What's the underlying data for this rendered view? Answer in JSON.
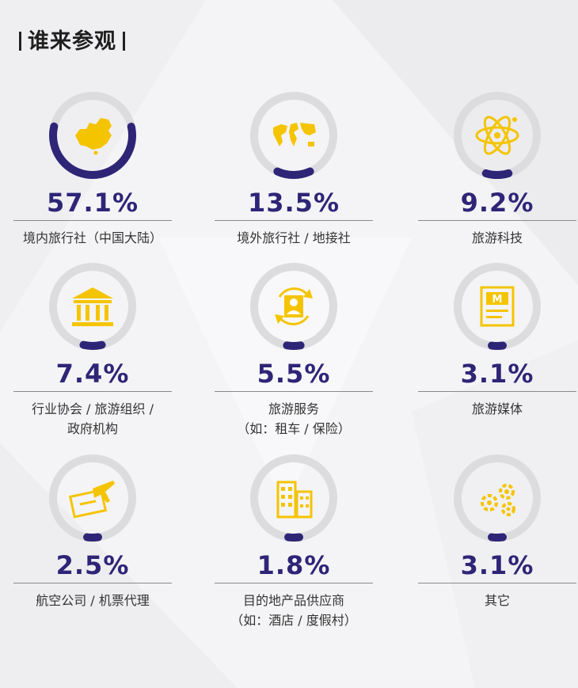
{
  "header": {
    "title": "谁来参观"
  },
  "colors": {
    "accent": "#2e2577",
    "icon": "#f5c400",
    "track": "#dcdcdf"
  },
  "chart_data": {
    "type": "radial",
    "title": "谁来参观",
    "items": [
      {
        "value": 57.1,
        "display": "57.1%",
        "label_line1": "境内旅行社（中国大陆）",
        "label_line2": "",
        "icon": "china-map-icon"
      },
      {
        "value": 13.5,
        "display": "13.5%",
        "label_line1": "境外旅行社 / 地接社",
        "label_line2": "",
        "icon": "world-map-icon"
      },
      {
        "value": 9.2,
        "display": "9.2%",
        "label_line1": "旅游科技",
        "label_line2": "",
        "icon": "atom-icon"
      },
      {
        "value": 7.4,
        "display": "7.4%",
        "label_line1": "行业协会 / 旅游组织 /",
        "label_line2": "政府机构",
        "icon": "government-building-icon"
      },
      {
        "value": 5.5,
        "display": "5.5%",
        "label_line1": "旅游服务",
        "label_line2": "（如：租车 / 保险）",
        "icon": "person-service-icon"
      },
      {
        "value": 3.1,
        "display": "3.1%",
        "label_line1": "旅游媒体",
        "label_line2": "",
        "icon": "magazine-icon"
      },
      {
        "value": 2.5,
        "display": "2.5%",
        "label_line1": "航空公司 / 机票代理",
        "label_line2": "",
        "icon": "airplane-ticket-icon"
      },
      {
        "value": 1.8,
        "display": "1.8%",
        "label_line1": "目的地产品供应商",
        "label_line2": "（如：酒店 / 度假村）",
        "icon": "buildings-icon"
      },
      {
        "value": 3.1,
        "display": "3.1%",
        "label_line1": "其它",
        "label_line2": "",
        "icon": "gears-icon"
      }
    ]
  }
}
